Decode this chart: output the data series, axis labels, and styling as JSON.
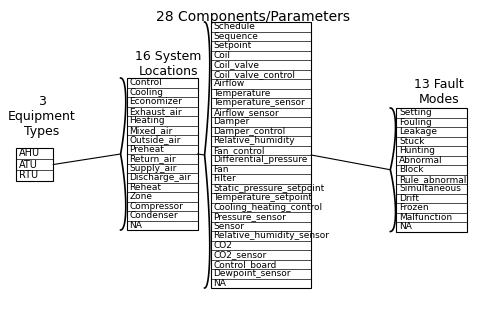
{
  "title": "28 Components/Parameters",
  "background_color": "#ffffff",
  "equipment_label": "3\nEquipment\nTypes",
  "equipment_items": [
    "AHU",
    "ATU",
    "RTU"
  ],
  "locations_label": "16 System\nLocations",
  "locations_items": [
    "Control",
    "Cooling",
    "Economizer",
    "Exhaust_air",
    "Heating",
    "Mixed_air",
    "Outside_air",
    "Preheat",
    "Return_air",
    "Supply_air",
    "Discharge_air",
    "Reheat",
    "Zone",
    "Compressor",
    "Condenser",
    "NA"
  ],
  "components_items": [
    "Schedule",
    "Sequence",
    "Setpoint",
    "Coil",
    "Coil_valve",
    "Coil_valve_control",
    "Airflow",
    "Temperature",
    "Temperature_sensor",
    "Airflow_sensor",
    "Damper",
    "Damper_control",
    "Relative_humidity",
    "Fan_control",
    "Differential_pressure",
    "Fan",
    "Filter",
    "Static_pressure_setpoint",
    "Temperature_setpoint",
    "Cooling_heating_control",
    "Pressure_sensor",
    "Sensor",
    "Relative_humidity_sensor",
    "CO2",
    "CO2_sensor",
    "Control_board",
    "Dewpoint_sensor",
    "NA"
  ],
  "faults_label": "13 Fault\nModes",
  "faults_items": [
    "Setting",
    "Fouling",
    "Leakage",
    "Stuck",
    "Hunting",
    "Abnormal",
    "Block",
    "Rule_abnormal",
    "Simultaneous",
    "Drift",
    "Frozen",
    "Malfunction",
    "NA"
  ]
}
